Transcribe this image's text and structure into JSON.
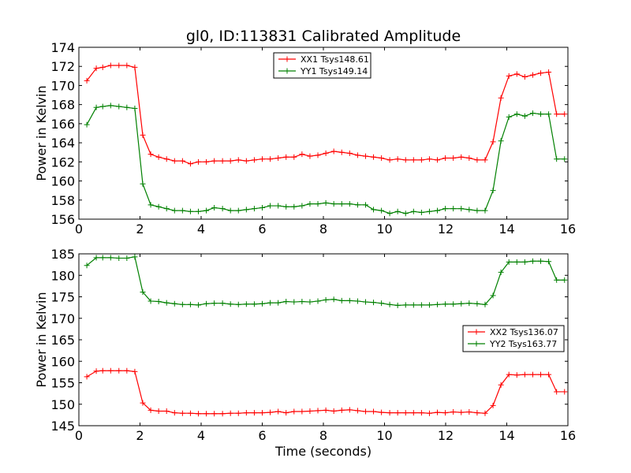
{
  "figure_title": "gl0, ID:113831 Calibrated Amplitude",
  "chart_data": [
    {
      "type": "line",
      "xlabel": "",
      "ylabel": "Power in Kelvin",
      "xlim": [
        0,
        16
      ],
      "ylim": [
        156,
        174
      ],
      "xticks": [
        0,
        2,
        4,
        6,
        8,
        10,
        12,
        14,
        16
      ],
      "yticks": [
        156,
        158,
        160,
        162,
        164,
        166,
        168,
        170,
        172,
        174
      ],
      "legend_position": "upper-center",
      "grid": false,
      "series": [
        {
          "name": "XX1 Tsys148.61",
          "color": "#ff0000",
          "x": [
            0.26,
            0.57,
            0.78,
            1.04,
            1.31,
            1.57,
            1.83,
            2.09,
            2.35,
            2.61,
            2.87,
            3.13,
            3.39,
            3.65,
            3.91,
            4.17,
            4.43,
            4.7,
            4.96,
            5.22,
            5.48,
            5.74,
            6.0,
            6.26,
            6.52,
            6.78,
            7.04,
            7.3,
            7.56,
            7.82,
            8.08,
            8.34,
            8.6,
            8.86,
            9.12,
            9.38,
            9.64,
            9.9,
            10.17,
            10.43,
            10.69,
            10.95,
            11.21,
            11.47,
            11.73,
            11.99,
            12.25,
            12.51,
            12.77,
            13.03,
            13.29,
            13.55,
            13.81,
            14.07,
            14.33,
            14.59,
            14.85,
            15.11,
            15.37,
            15.63,
            15.89
          ],
          "values": [
            170.5,
            171.8,
            171.9,
            172.1,
            172.1,
            172.1,
            171.9,
            164.8,
            162.8,
            162.5,
            162.3,
            162.1,
            162.1,
            161.8,
            162.0,
            162.0,
            162.1,
            162.1,
            162.1,
            162.2,
            162.1,
            162.2,
            162.3,
            162.3,
            162.4,
            162.5,
            162.5,
            162.8,
            162.6,
            162.7,
            162.9,
            163.1,
            163.0,
            162.9,
            162.7,
            162.6,
            162.5,
            162.4,
            162.2,
            162.3,
            162.2,
            162.2,
            162.2,
            162.3,
            162.2,
            162.4,
            162.4,
            162.5,
            162.4,
            162.2,
            162.2,
            164.1,
            168.7,
            171.0,
            171.2,
            170.9,
            171.1,
            171.3,
            171.4,
            167.0,
            167.0
          ]
        },
        {
          "name": "YY1 Tsys149.14",
          "color": "#008000",
          "x": [
            0.26,
            0.57,
            0.78,
            1.04,
            1.31,
            1.57,
            1.83,
            2.09,
            2.35,
            2.61,
            2.87,
            3.13,
            3.39,
            3.65,
            3.91,
            4.17,
            4.43,
            4.7,
            4.96,
            5.22,
            5.48,
            5.74,
            6.0,
            6.26,
            6.52,
            6.78,
            7.04,
            7.3,
            7.56,
            7.82,
            8.08,
            8.34,
            8.6,
            8.86,
            9.12,
            9.38,
            9.64,
            9.9,
            10.17,
            10.43,
            10.69,
            10.95,
            11.21,
            11.47,
            11.73,
            11.99,
            12.25,
            12.51,
            12.77,
            13.03,
            13.29,
            13.55,
            13.81,
            14.07,
            14.33,
            14.59,
            14.85,
            15.11,
            15.37,
            15.63,
            15.89
          ],
          "values": [
            165.9,
            167.7,
            167.8,
            167.9,
            167.8,
            167.7,
            167.6,
            159.7,
            157.5,
            157.3,
            157.1,
            156.9,
            156.9,
            156.8,
            156.8,
            156.9,
            157.2,
            157.1,
            156.9,
            156.9,
            157.0,
            157.1,
            157.2,
            157.4,
            157.4,
            157.3,
            157.3,
            157.4,
            157.6,
            157.6,
            157.7,
            157.6,
            157.6,
            157.6,
            157.5,
            157.5,
            157.0,
            156.9,
            156.6,
            156.8,
            156.6,
            156.8,
            156.7,
            156.8,
            156.9,
            157.1,
            157.1,
            157.1,
            157.0,
            156.9,
            156.9,
            159.0,
            164.2,
            166.7,
            167.0,
            166.8,
            167.1,
            167.0,
            167.0,
            162.3,
            162.3
          ]
        }
      ]
    },
    {
      "type": "line",
      "xlabel": "Time (seconds)",
      "ylabel": "Power in Kelvin",
      "xlim": [
        0,
        16
      ],
      "ylim": [
        145,
        185
      ],
      "xticks": [
        0,
        2,
        4,
        6,
        8,
        10,
        12,
        14,
        16
      ],
      "yticks": [
        145,
        150,
        155,
        160,
        165,
        170,
        175,
        180,
        185
      ],
      "legend_position": "center-right",
      "grid": false,
      "series": [
        {
          "name": "XX2 Tsys136.07",
          "color": "#ff0000",
          "x": [
            0.26,
            0.57,
            0.78,
            1.04,
            1.31,
            1.57,
            1.83,
            2.09,
            2.35,
            2.61,
            2.87,
            3.13,
            3.39,
            3.65,
            3.91,
            4.17,
            4.43,
            4.7,
            4.96,
            5.22,
            5.48,
            5.74,
            6.0,
            6.26,
            6.52,
            6.78,
            7.04,
            7.3,
            7.56,
            7.82,
            8.08,
            8.34,
            8.6,
            8.86,
            9.12,
            9.38,
            9.64,
            9.9,
            10.17,
            10.43,
            10.69,
            10.95,
            11.21,
            11.47,
            11.73,
            11.99,
            12.25,
            12.51,
            12.77,
            13.03,
            13.29,
            13.55,
            13.81,
            14.07,
            14.33,
            14.59,
            14.85,
            15.11,
            15.37,
            15.63,
            15.89
          ],
          "values": [
            156.4,
            157.7,
            157.8,
            157.8,
            157.8,
            157.8,
            157.6,
            150.3,
            148.6,
            148.4,
            148.4,
            148.0,
            147.9,
            147.9,
            147.8,
            147.8,
            147.8,
            147.8,
            147.9,
            147.9,
            148.0,
            148.0,
            148.0,
            148.1,
            148.3,
            148.0,
            148.3,
            148.3,
            148.4,
            148.5,
            148.6,
            148.4,
            148.6,
            148.7,
            148.5,
            148.3,
            148.3,
            148.1,
            148.0,
            148.0,
            148.0,
            148.0,
            148.0,
            147.9,
            148.1,
            148.0,
            148.2,
            148.1,
            148.2,
            148.0,
            147.9,
            149.7,
            154.5,
            156.9,
            156.8,
            156.9,
            156.9,
            156.9,
            156.9,
            152.9,
            152.9
          ]
        },
        {
          "name": "YY2 Tsys163.77",
          "color": "#008000",
          "x": [
            0.26,
            0.57,
            0.78,
            1.04,
            1.31,
            1.57,
            1.83,
            2.09,
            2.35,
            2.61,
            2.87,
            3.13,
            3.39,
            3.65,
            3.91,
            4.17,
            4.43,
            4.7,
            4.96,
            5.22,
            5.48,
            5.74,
            6.0,
            6.26,
            6.52,
            6.78,
            7.04,
            7.3,
            7.56,
            7.82,
            8.08,
            8.34,
            8.6,
            8.86,
            9.12,
            9.38,
            9.64,
            9.9,
            10.17,
            10.43,
            10.69,
            10.95,
            11.21,
            11.47,
            11.73,
            11.99,
            12.25,
            12.51,
            12.77,
            13.03,
            13.29,
            13.55,
            13.81,
            14.07,
            14.33,
            14.59,
            14.85,
            15.11,
            15.37,
            15.63,
            15.89
          ],
          "values": [
            182.3,
            184.1,
            184.1,
            184.1,
            184.0,
            184.0,
            184.3,
            176.1,
            174.0,
            173.9,
            173.6,
            173.4,
            173.2,
            173.2,
            173.1,
            173.4,
            173.5,
            173.5,
            173.3,
            173.2,
            173.3,
            173.3,
            173.4,
            173.6,
            173.6,
            173.9,
            173.8,
            173.9,
            173.8,
            174.0,
            174.3,
            174.4,
            174.1,
            174.1,
            174.0,
            173.8,
            173.7,
            173.5,
            173.2,
            173.0,
            173.1,
            173.1,
            173.1,
            173.1,
            173.2,
            173.3,
            173.3,
            173.4,
            173.5,
            173.4,
            173.2,
            175.3,
            180.7,
            183.1,
            183.1,
            183.1,
            183.3,
            183.3,
            183.2,
            178.9,
            178.9
          ]
        }
      ]
    }
  ]
}
